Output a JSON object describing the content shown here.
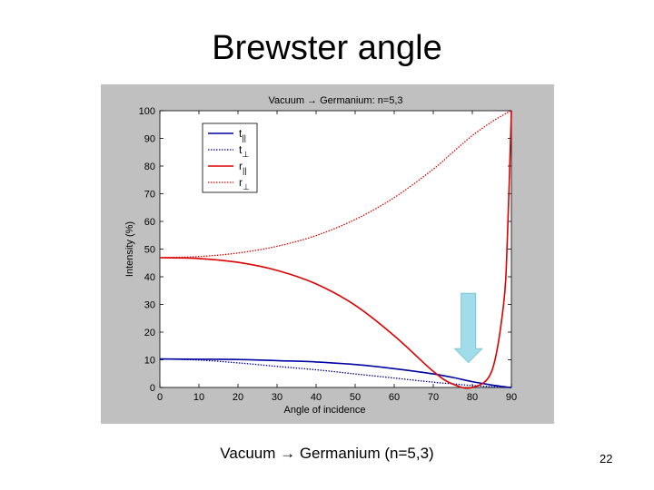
{
  "slide": {
    "title": "Brewster angle",
    "caption": "Vacuum → Germanium (n=5,3)",
    "page_number": "22"
  },
  "chart_data": {
    "type": "line",
    "title": "Vacuum → Germanium: n=5,3",
    "xlabel": "Angle of incidence",
    "ylabel": "Intensity (%)",
    "xlim": [
      0,
      90
    ],
    "ylim": [
      0,
      100
    ],
    "xticks": [
      "0",
      "10",
      "20",
      "30",
      "40",
      "50",
      "60",
      "70",
      "80",
      "90"
    ],
    "yticks": [
      "0",
      "10",
      "20",
      "30",
      "40",
      "50",
      "60",
      "70",
      "80",
      "90",
      "100"
    ],
    "legend_position": "top-left",
    "x": [
      0,
      10,
      20,
      30,
      40,
      50,
      60,
      70,
      75,
      80,
      85,
      88,
      89,
      90
    ],
    "series": [
      {
        "name": "t",
        "subscript": "||",
        "style": "solid",
        "color": "#0000a0",
        "values": [
          10.3,
          10.2,
          10.1,
          9.7,
          9.2,
          8.3,
          6.8,
          4.9,
          3.6,
          2.1,
          0.9,
          0.3,
          0.1,
          0
        ]
      },
      {
        "name": "t",
        "subscript": "⊥",
        "style": "dotted",
        "color": "#0000a0",
        "values": [
          10.3,
          9.9,
          8.9,
          7.6,
          6.4,
          4.9,
          3.4,
          1.9,
          1.3,
          0.7,
          0.3,
          0.1,
          0.04,
          0
        ]
      },
      {
        "name": "r",
        "subscript": "||",
        "style": "solid",
        "color": "#dd0000",
        "values": [
          46.9,
          46.6,
          45.2,
          42.3,
          37.4,
          29.7,
          18.7,
          5.8,
          1.2,
          0,
          6.0,
          30.0,
          55.0,
          100
        ]
      },
      {
        "name": "r",
        "subscript": "⊥",
        "style": "dotted",
        "color": "#dd0000",
        "values": [
          46.9,
          47.3,
          48.6,
          51.0,
          54.9,
          60.7,
          68.6,
          78.9,
          85.0,
          91.0,
          96.0,
          98.5,
          99.3,
          100
        ]
      }
    ],
    "annotations": [
      {
        "type": "arrow",
        "direction": "down",
        "x": 79,
        "color": "#8fd6e6"
      }
    ]
  }
}
